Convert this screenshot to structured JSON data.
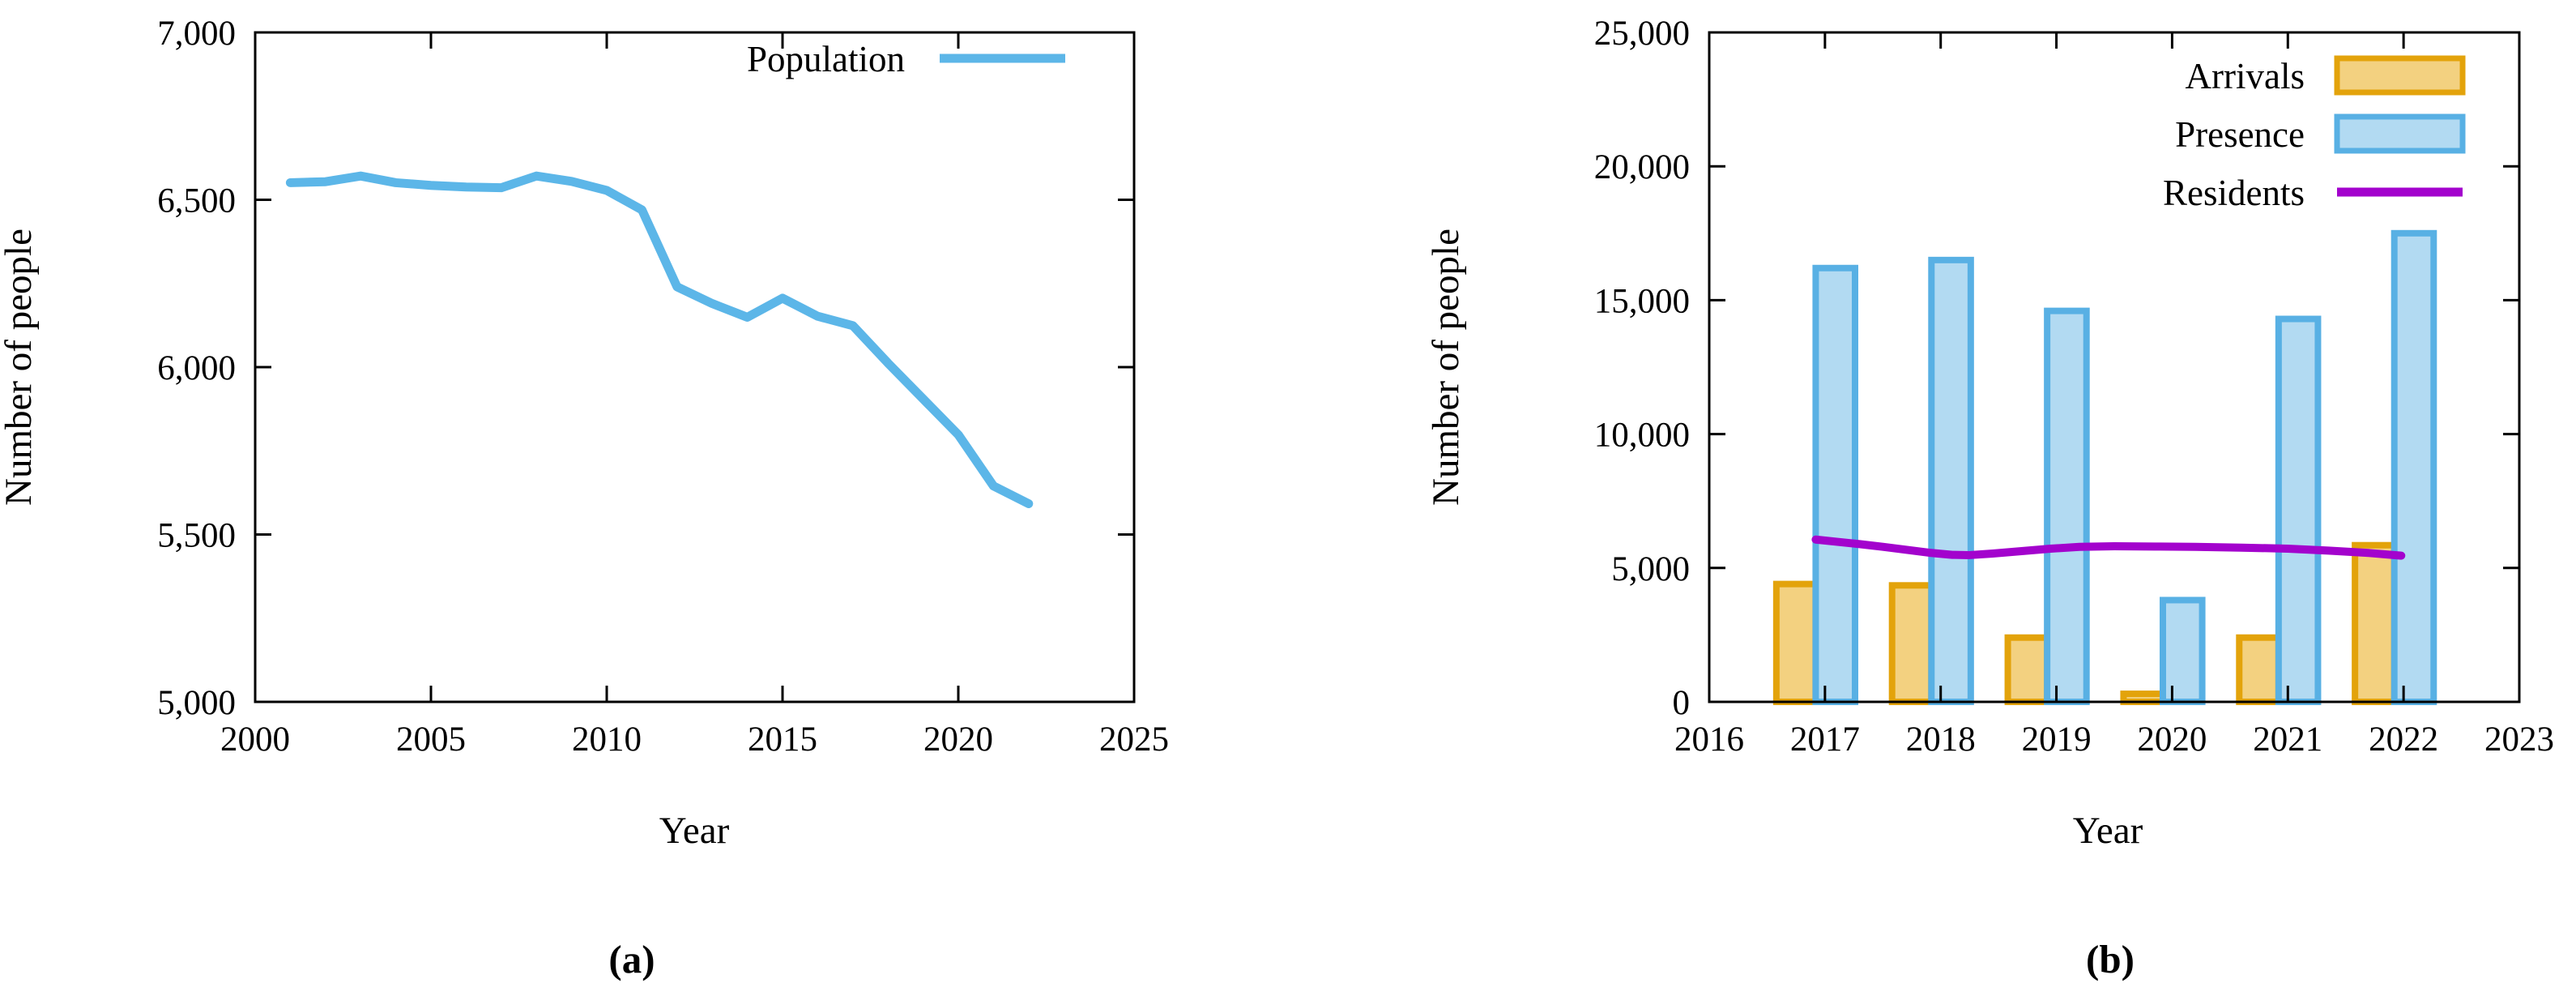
{
  "figure": {
    "background": "#ffffff",
    "border_color": "#000000",
    "panels": [
      {
        "caption": "(a)"
      },
      {
        "caption": "(b)"
      }
    ]
  },
  "chart_data": [
    {
      "id": "a",
      "type": "line",
      "panel_label": "(a)",
      "xlabel": "Year",
      "ylabel": "Number of people",
      "xlim": [
        2000,
        2025
      ],
      "ylim": [
        5000,
        7000
      ],
      "grid": false,
      "legend_position": "top-right-inside",
      "x_ticks": [
        {
          "v": 2000,
          "label": "2000"
        },
        {
          "v": 2005,
          "label": "2005"
        },
        {
          "v": 2010,
          "label": "2010"
        },
        {
          "v": 2015,
          "label": "2015"
        },
        {
          "v": 2020,
          "label": "2020"
        },
        {
          "v": 2025,
          "label": "2025"
        }
      ],
      "y_ticks": [
        {
          "v": 5000,
          "label": "5,000"
        },
        {
          "v": 5500,
          "label": "5,500"
        },
        {
          "v": 6000,
          "label": "6,000"
        },
        {
          "v": 6500,
          "label": "6,500"
        },
        {
          "v": 7000,
          "label": "7,000"
        }
      ],
      "legend": [
        {
          "label": "Population",
          "swatch": "line",
          "color": "#5cb6e8"
        }
      ],
      "series": [
        {
          "name": "Population",
          "type": "line",
          "color": "#5cb6e8",
          "stroke_width": 11,
          "x": [
            2001,
            2002,
            2003,
            2004,
            2005,
            2006,
            2007,
            2008,
            2009,
            2010,
            2011,
            2012,
            2013,
            2014,
            2015,
            2016,
            2017,
            2018,
            2019,
            2020,
            2021,
            2022
          ],
          "y": [
            6551,
            6554,
            6571,
            6551,
            6543,
            6538,
            6536,
            6571,
            6555,
            6528,
            6470,
            6240,
            6190,
            6149,
            6206,
            6152,
            6124,
            6012,
            5905,
            5798,
            5645,
            5592
          ]
        }
      ]
    },
    {
      "id": "b",
      "type": "bar",
      "panel_label": "(b)",
      "xlabel": "Year",
      "ylabel": "Number of people",
      "xlim": [
        2016,
        2023
      ],
      "ylim": [
        0,
        25000
      ],
      "grid": false,
      "legend_position": "top-right-inside",
      "x_ticks": [
        {
          "v": 2016,
          "label": "2016"
        },
        {
          "v": 2017,
          "label": "2017"
        },
        {
          "v": 2018,
          "label": "2018"
        },
        {
          "v": 2019,
          "label": "2019"
        },
        {
          "v": 2020,
          "label": "2020"
        },
        {
          "v": 2021,
          "label": "2021"
        },
        {
          "v": 2022,
          "label": "2022"
        },
        {
          "v": 2023,
          "label": "2023"
        }
      ],
      "y_ticks": [
        {
          "v": 0,
          "label": "0"
        },
        {
          "v": 5000,
          "label": "5,000"
        },
        {
          "v": 10000,
          "label": "10,000"
        },
        {
          "v": 15000,
          "label": "15,000"
        },
        {
          "v": 20000,
          "label": "20,000"
        },
        {
          "v": 25000,
          "label": "25,000"
        }
      ],
      "legend": [
        {
          "label": "Arrivals",
          "swatch": "box",
          "fill": "#f3d180",
          "stroke": "#e3a30b"
        },
        {
          "label": "Presence",
          "swatch": "box",
          "fill": "#b2daf2",
          "stroke": "#58b0e4"
        },
        {
          "label": "Residents",
          "swatch": "line",
          "color": "#a303cd"
        }
      ],
      "series": [
        {
          "name": "Arrivals",
          "type": "bar",
          "fill": "#f3d180",
          "stroke": "#e3a30b",
          "stroke_width": 8,
          "bar_offset": -0.42,
          "bar_width": 0.34,
          "x": [
            2017,
            2018,
            2019,
            2020,
            2021,
            2022
          ],
          "y": [
            4400,
            4350,
            2400,
            300,
            2400,
            5850
          ]
        },
        {
          "name": "Presence",
          "type": "bar",
          "fill": "#b2daf2",
          "stroke": "#58b0e4",
          "stroke_width": 8,
          "bar_offset": -0.08,
          "bar_width": 0.34,
          "x": [
            2017,
            2018,
            2019,
            2020,
            2021,
            2022
          ],
          "y": [
            16200,
            16500,
            14600,
            3800,
            14300,
            17500
          ]
        },
        {
          "name": "Residents",
          "type": "line",
          "color": "#a303cd",
          "stroke_width": 10,
          "x": [
            2016.92,
            2017.1,
            2017.3,
            2017.5,
            2017.7,
            2017.9,
            2018.1,
            2018.25,
            2018.45,
            2018.7,
            2018.95,
            2019.2,
            2019.5,
            2019.85,
            2020.2,
            2020.6,
            2021.0,
            2021.35,
            2021.7,
            2021.98
          ],
          "y": [
            6060,
            5980,
            5890,
            5790,
            5680,
            5570,
            5490,
            5480,
            5540,
            5630,
            5720,
            5790,
            5810,
            5800,
            5790,
            5760,
            5720,
            5650,
            5560,
            5460
          ]
        }
      ]
    }
  ]
}
